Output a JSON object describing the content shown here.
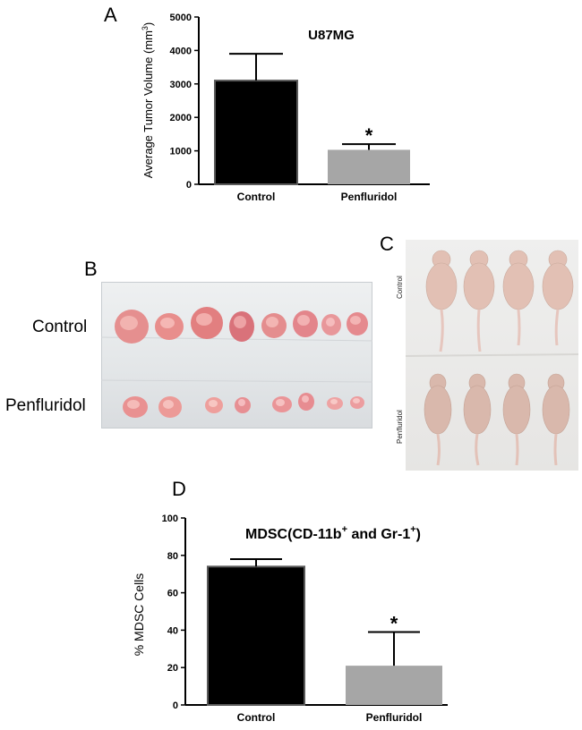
{
  "panels": {
    "a": "A",
    "b": "B",
    "c": "C",
    "d": "D"
  },
  "photo_b": {
    "control_label": "Control",
    "penfluridol_label": "Penfluridol"
  },
  "photo_c": {
    "control_label": "Control",
    "penfluridol_label": "Penfluridol"
  },
  "chart_data": [
    {
      "type": "bar",
      "title": "U87MG",
      "ylabel_parts": [
        "Average Tumor Volume (mm",
        "3",
        ")"
      ],
      "categories": [
        "Control",
        "Penfluridol"
      ],
      "values": [
        3100,
        1030
      ],
      "errors": [
        800,
        170
      ],
      "significance": [
        "",
        "*"
      ],
      "colors": [
        "#000000",
        "#a6a6a6"
      ],
      "ylim": [
        0,
        5000
      ],
      "yticks": [
        0,
        1000,
        2000,
        3000,
        4000,
        5000
      ]
    },
    {
      "type": "bar",
      "title_parts": [
        "MDSC(CD-11b",
        "+",
        " and Gr-1",
        "+",
        ")"
      ],
      "ylabel": "% MDSC Cells",
      "categories": [
        "Control",
        "Penfluridol"
      ],
      "values": [
        74,
        21
      ],
      "errors": [
        4,
        18
      ],
      "significance": [
        "",
        "*"
      ],
      "colors": [
        "#000000",
        "#a6a6a6"
      ],
      "ylim": [
        0,
        100
      ],
      "yticks": [
        0,
        20,
        40,
        60,
        80,
        100
      ]
    }
  ]
}
